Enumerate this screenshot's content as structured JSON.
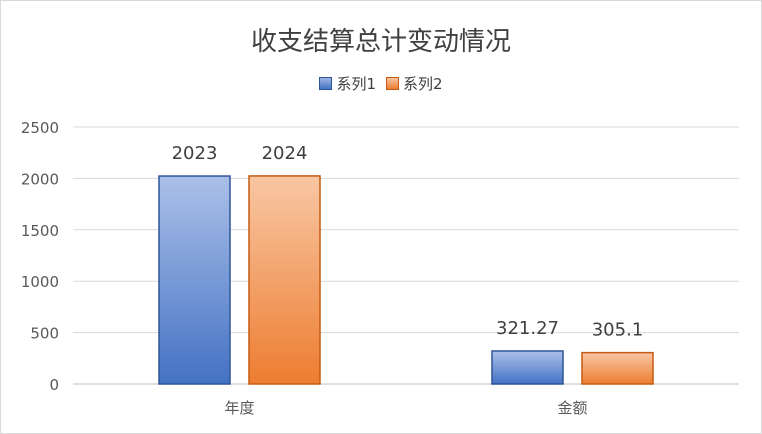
{
  "chart_data": {
    "type": "bar",
    "title": "收支结算总计变动情况",
    "categories": [
      "年度",
      "金额"
    ],
    "series": [
      {
        "name": "系列1",
        "values": [
          2023,
          321.27
        ],
        "labels": [
          "2023",
          "321.27"
        ],
        "color": "#4472c4"
      },
      {
        "name": "系列2",
        "values": [
          2024,
          305.1
        ],
        "labels": [
          "2024",
          "305.1"
        ],
        "color": "#ed7d31"
      }
    ],
    "ylim": [
      0,
      2500
    ],
    "yticks": [
      0,
      500,
      1000,
      1500,
      2000,
      2500
    ],
    "grid": true,
    "legend_position": "top"
  }
}
